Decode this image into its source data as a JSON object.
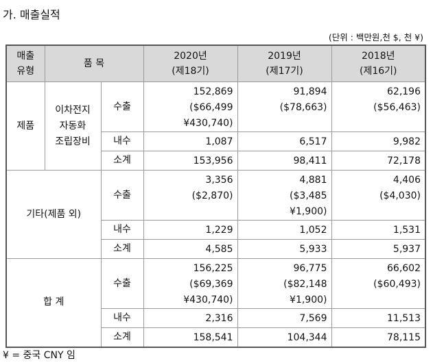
{
  "title": "가. 매출실적",
  "unit": "(단위 : 백만원,천 $, 천 ¥)",
  "header": {
    "col1": [
      "매출",
      "유형"
    ],
    "col2": "품 목",
    "years": [
      {
        "y": "2020년",
        "p": "(제18기)"
      },
      {
        "y": "2019년",
        "p": "(제17기)"
      },
      {
        "y": "2018년",
        "p": "(제16기)"
      }
    ]
  },
  "sections": [
    {
      "type": "제품",
      "item": [
        "이차전지",
        "자동화",
        "조립장비"
      ],
      "rows": [
        {
          "label": "수출",
          "vals": [
            [
              "152,869",
              "($66,499",
              "¥430,740)"
            ],
            [
              "91,894",
              "($78,663)"
            ],
            [
              "62,196",
              "($56,463)"
            ]
          ]
        },
        {
          "label": "내수",
          "vals": [
            [
              "1,087"
            ],
            [
              "6,517"
            ],
            [
              "9,982"
            ]
          ]
        },
        {
          "label": "소계",
          "vals": [
            [
              "153,956"
            ],
            [
              "98,411"
            ],
            [
              "72,178"
            ]
          ]
        }
      ]
    },
    {
      "type": "기타(제품 외)",
      "rows": [
        {
          "label": "수출",
          "vals": [
            [
              "3,356",
              "($2,870)"
            ],
            [
              "4,881",
              "($3,485",
              "¥1,900)"
            ],
            [
              "4,406",
              "($4,030)"
            ]
          ]
        },
        {
          "label": "내수",
          "vals": [
            [
              "1,229"
            ],
            [
              "1,052"
            ],
            [
              "1,531"
            ]
          ]
        },
        {
          "label": "소계",
          "vals": [
            [
              "4,585"
            ],
            [
              "5,933"
            ],
            [
              "5,937"
            ]
          ]
        }
      ]
    },
    {
      "type": "합 계",
      "rows": [
        {
          "label": "수출",
          "vals": [
            [
              "156,225",
              "($69,369",
              "¥430,740)"
            ],
            [
              "96,775",
              "($82,148",
              "¥1,900)"
            ],
            [
              "66,602",
              "($60,493)"
            ]
          ]
        },
        {
          "label": "내수",
          "vals": [
            [
              "2,316"
            ],
            [
              "7,569"
            ],
            [
              "11,513"
            ]
          ]
        },
        {
          "label": "소계",
          "vals": [
            [
              "158,541"
            ],
            [
              "104,344"
            ],
            [
              "78,115"
            ]
          ]
        }
      ]
    }
  ],
  "footnote": "¥ = 중국 CNY 임"
}
